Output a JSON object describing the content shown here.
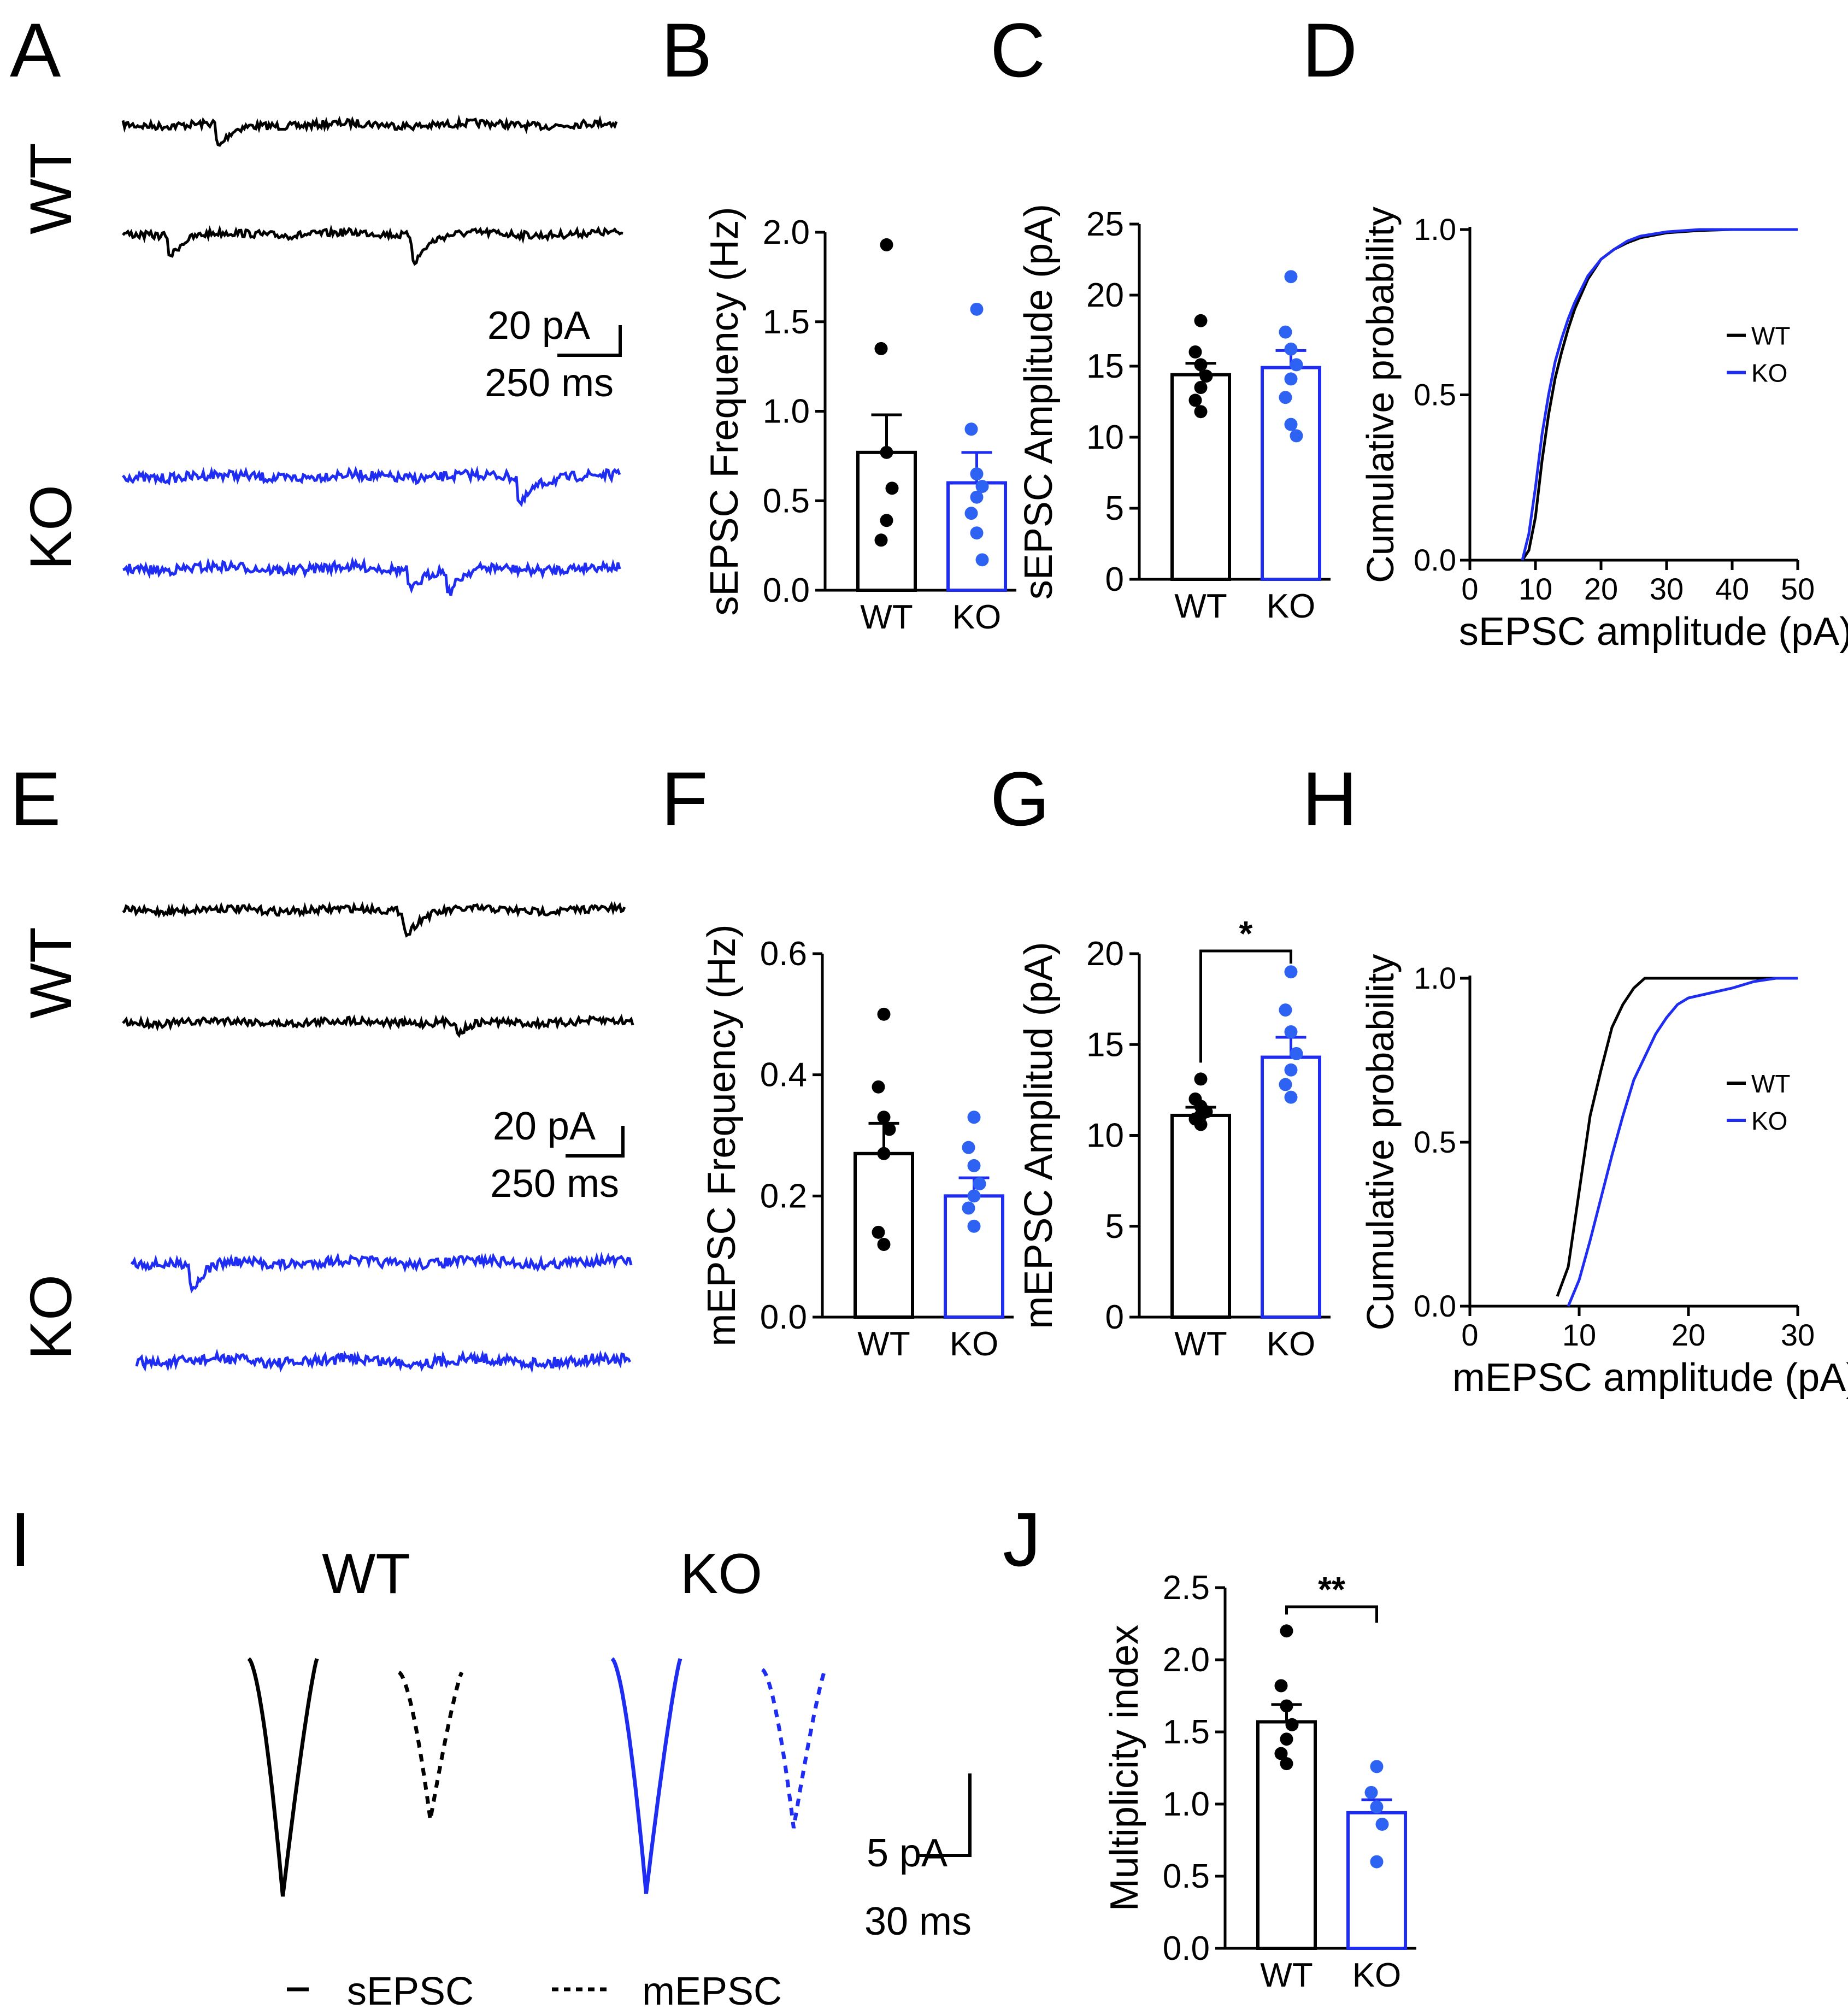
{
  "colors": {
    "wt": "#000000",
    "ko": "#1f2df2",
    "ko_dot": "#2e62f2"
  },
  "panel_letters": {
    "A": "A",
    "B": "B",
    "C": "C",
    "D": "D",
    "E": "E",
    "F": "F",
    "G": "G",
    "H": "H",
    "I": "I",
    "J": "J"
  },
  "traces": {
    "wt_label": "WT",
    "ko_label": "KO",
    "scale_amp": "20 pA",
    "scale_time": "250 ms"
  },
  "avg": {
    "wt_label": "WT",
    "ko_label": "KO",
    "scale_amp": "5 pA",
    "scale_time": "30 ms",
    "legend_solid": "sEPSC",
    "legend_dashed": "mEPSC"
  },
  "chart_data": [
    {
      "panel": "B",
      "type": "bar",
      "ylabel": "sEPSC Frequency (Hz)",
      "ylim": [
        0,
        2.0
      ],
      "ticks": [
        0.0,
        0.5,
        1.0,
        1.5,
        2.0
      ],
      "tick_labels": [
        "0.0",
        "0.5",
        "1.0",
        "1.5",
        "2.0"
      ],
      "categories": [
        "WT",
        "KO"
      ],
      "means": [
        0.77,
        0.6
      ],
      "sem": [
        0.21,
        0.17
      ],
      "points": [
        [
          1.93,
          1.35,
          0.77,
          0.57,
          0.39,
          0.28
        ],
        [
          1.57,
          0.9,
          0.65,
          0.58,
          0.52,
          0.43,
          0.32,
          0.17
        ]
      ],
      "significance": ""
    },
    {
      "panel": "C",
      "type": "bar",
      "ylabel": "sEPSC Amplitude (pA)",
      "ylim": [
        0,
        25
      ],
      "ticks": [
        0,
        5,
        10,
        15,
        20,
        25
      ],
      "tick_labels": [
        "0",
        "5",
        "10",
        "15",
        "20",
        "25"
      ],
      "categories": [
        "WT",
        "KO"
      ],
      "means": [
        14.4,
        14.9
      ],
      "sem": [
        0.8,
        1.2
      ],
      "points": [
        [
          18.2,
          16.0,
          15.1,
          14.3,
          13.5,
          12.6,
          11.8
        ],
        [
          21.3,
          17.4,
          16.2,
          15.1,
          14.1,
          12.8,
          10.9,
          10.1
        ]
      ],
      "significance": ""
    },
    {
      "panel": "D",
      "type": "line",
      "xlabel": "sEPSC amplitude (pA)",
      "ylabel": "Cumulative probability",
      "xlim": [
        0,
        50
      ],
      "xticks": [
        0,
        10,
        20,
        30,
        40,
        50
      ],
      "ylim": [
        0,
        1.0
      ],
      "yticks": [
        0.0,
        0.5,
        1.0
      ],
      "ytick_labels": [
        "0.0",
        "0.5",
        "1.0"
      ],
      "legend": "top-right",
      "series": [
        {
          "name": "WT",
          "x": [
            8,
            9,
            10,
            11,
            12,
            13,
            14,
            15,
            16,
            18,
            20,
            22,
            24,
            26,
            30,
            35,
            40,
            45,
            50
          ],
          "y": [
            0,
            0.03,
            0.13,
            0.3,
            0.44,
            0.55,
            0.63,
            0.7,
            0.76,
            0.85,
            0.91,
            0.94,
            0.96,
            0.975,
            0.99,
            0.997,
            1.0,
            1.0,
            1.0
          ]
        },
        {
          "name": "KO",
          "x": [
            8,
            9,
            10,
            11,
            12,
            13,
            14,
            15,
            16,
            18,
            20,
            22,
            24,
            26,
            30,
            35,
            40,
            45,
            50
          ],
          "y": [
            0,
            0.08,
            0.22,
            0.38,
            0.5,
            0.6,
            0.67,
            0.73,
            0.78,
            0.86,
            0.91,
            0.94,
            0.965,
            0.98,
            0.993,
            1.0,
            1.0,
            1.0,
            1.0
          ]
        }
      ]
    },
    {
      "panel": "F",
      "type": "bar",
      "ylabel": "mEPSC Frequency (Hz)",
      "ylim": [
        0,
        0.6
      ],
      "ticks": [
        0.0,
        0.2,
        0.4,
        0.6
      ],
      "tick_labels": [
        "0.0",
        "0.2",
        "0.4",
        "0.6"
      ],
      "categories": [
        "WT",
        "KO"
      ],
      "means": [
        0.27,
        0.2
      ],
      "sem": [
        0.05,
        0.03
      ],
      "points": [
        [
          0.5,
          0.38,
          0.33,
          0.31,
          0.27,
          0.14,
          0.12
        ],
        [
          0.33,
          0.28,
          0.25,
          0.22,
          0.2,
          0.18,
          0.15
        ]
      ],
      "significance": ""
    },
    {
      "panel": "G",
      "type": "bar",
      "ylabel": "mEPSC Amplitud (pA)",
      "ylim": [
        0,
        20
      ],
      "ticks": [
        0,
        5,
        10,
        15,
        20
      ],
      "tick_labels": [
        "0",
        "5",
        "10",
        "15",
        "20"
      ],
      "categories": [
        "WT",
        "KO"
      ],
      "means": [
        11.1,
        14.3
      ],
      "sem": [
        0.45,
        1.1
      ],
      "points": [
        [
          13.1,
          12.0,
          11.6,
          11.3,
          11.1,
          10.9,
          10.6
        ],
        [
          19.0,
          16.9,
          15.7,
          14.5,
          13.6,
          12.8,
          12.1
        ]
      ],
      "significance": "*"
    },
    {
      "panel": "H",
      "type": "line",
      "xlabel": "mEPSC amplitude (pA)",
      "ylabel": "Cumulative probability",
      "xlim": [
        0,
        30
      ],
      "xticks": [
        0,
        10,
        20,
        30
      ],
      "ylim": [
        0,
        1.0
      ],
      "yticks": [
        0.0,
        0.5,
        1.0
      ],
      "ytick_labels": [
        "0.0",
        "0.5",
        "1.0"
      ],
      "legend": "top-right",
      "series": [
        {
          "name": "WT",
          "x": [
            8,
            9,
            10,
            11,
            12,
            13,
            14,
            15,
            16,
            20,
            25,
            30
          ],
          "y": [
            0.03,
            0.12,
            0.35,
            0.58,
            0.72,
            0.85,
            0.92,
            0.97,
            1.0,
            1.0,
            1.0,
            1.0
          ]
        },
        {
          "name": "KO",
          "x": [
            9,
            10,
            11,
            12,
            13,
            14,
            15,
            16,
            17,
            18,
            19,
            20,
            22,
            24,
            26,
            28,
            30
          ],
          "y": [
            0,
            0.08,
            0.2,
            0.33,
            0.46,
            0.58,
            0.69,
            0.76,
            0.83,
            0.88,
            0.92,
            0.94,
            0.955,
            0.97,
            0.99,
            1.0,
            1.0
          ]
        }
      ]
    },
    {
      "panel": "J",
      "type": "bar",
      "ylabel": "Multiplicity index",
      "ylim": [
        0,
        2.5
      ],
      "ticks": [
        0.0,
        0.5,
        1.0,
        1.5,
        2.0,
        2.5
      ],
      "tick_labels": [
        "0.0",
        "0.5",
        "1.0",
        "1.5",
        "2.0",
        "2.5"
      ],
      "categories": [
        "WT",
        "KO"
      ],
      "means": [
        1.57,
        0.94
      ],
      "sem": [
        0.12,
        0.09
      ],
      "points": [
        [
          2.2,
          1.82,
          1.68,
          1.55,
          1.45,
          1.35,
          1.28
        ],
        [
          1.26,
          1.08,
          0.98,
          0.86,
          0.6
        ]
      ],
      "significance": "**"
    }
  ]
}
